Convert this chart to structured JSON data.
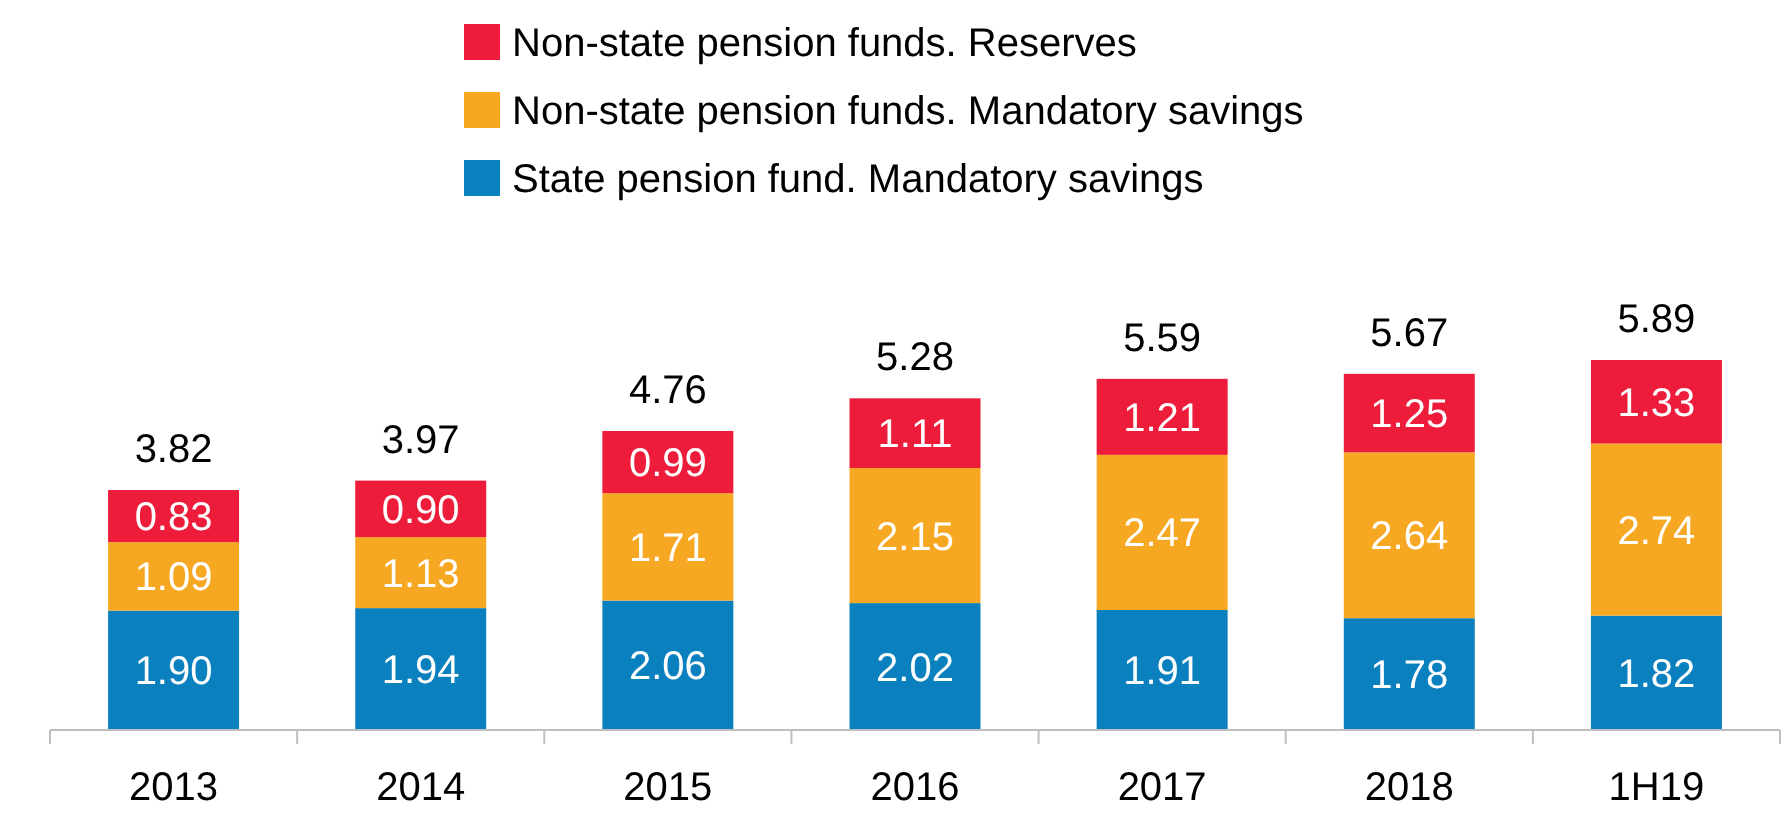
{
  "chart_data": {
    "type": "bar",
    "stacked": true,
    "categories": [
      "2013",
      "2014",
      "2015",
      "2016",
      "2017",
      "2018",
      "1H19"
    ],
    "series": [
      {
        "name": "State pension fund. Mandatory savings",
        "color": "#0a80bf",
        "values": [
          1.9,
          1.94,
          2.06,
          2.02,
          1.91,
          1.78,
          1.82
        ],
        "value_labels": [
          "1.90",
          "1.94",
          "2.06",
          "2.02",
          "1.91",
          "1.78",
          "1.82"
        ]
      },
      {
        "name": "Non-state pension funds. Mandatory savings",
        "color": "#f7a823",
        "values": [
          1.09,
          1.13,
          1.71,
          2.15,
          2.47,
          2.64,
          2.74
        ],
        "value_labels": [
          "1.09",
          "1.13",
          "1.71",
          "2.15",
          "2.47",
          "2.64",
          "2.74"
        ]
      },
      {
        "name": "Non-state pension funds. Reserves",
        "color": "#ec1c3a",
        "values": [
          0.83,
          0.9,
          0.99,
          1.11,
          1.21,
          1.25,
          1.33
        ],
        "value_labels": [
          "0.83",
          "0.90",
          "0.99",
          "1.11",
          "1.21",
          "1.25",
          "1.33"
        ]
      }
    ],
    "totals": [
      "3.82",
      "3.97",
      "4.76",
      "5.28",
      "5.59",
      "5.67",
      "5.89"
    ],
    "legend": "top"
  }
}
